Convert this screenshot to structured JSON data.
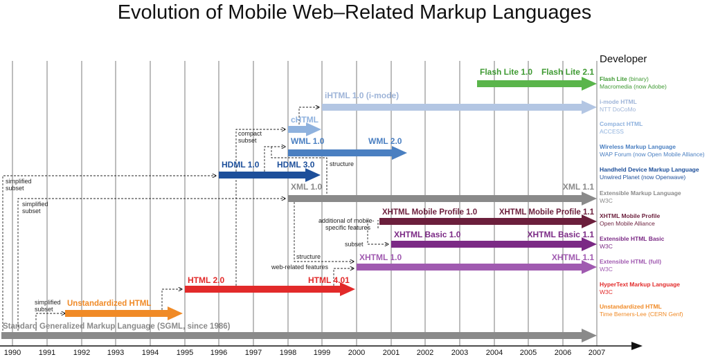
{
  "title": "Evolution of Mobile Web–Related Markup Languages",
  "developer_header": "Developer",
  "years": [
    "1990",
    "1991",
    "1992",
    "1993",
    "1994",
    "1995",
    "1996",
    "1997",
    "1998",
    "1999",
    "2000",
    "2001",
    "2002",
    "2003",
    "2004",
    "2005",
    "2006",
    "2007"
  ],
  "colors": {
    "sgml": "#8a8a8a",
    "xml": "#8a8a8a",
    "flash": "#5ab54b",
    "ihtml": "#b3c6e3",
    "chtml": "#8fb2de",
    "wml": "#4a7fc1",
    "hdml": "#1d4f9a",
    "xhtml_mp": "#6b1f3c",
    "xhtml_basic": "#7b2a85",
    "xhtml": "#a05ab0",
    "html": "#e22a2a",
    "unstd": "#f08a26",
    "flash_text": "#3f9a33",
    "ihtml_text": "#9eb4d8"
  },
  "labels": {
    "flash_lite_10": "Flash Lite 1.0",
    "flash_lite_21": "Flash Lite 2.1",
    "ihtml_10": "iHTML 1.0 (i-mode)",
    "chtml": "cHTML",
    "wml_10": "WML 1.0",
    "wml_20": "WML 2.0",
    "hdml_10": "HDML 1.0",
    "hdml_30": "HDML 3.0",
    "xml_10": "XML 1.0",
    "xml_11": "XML 1.1",
    "xhtml_mp_10": "XHTML Mobile Profile 1.0",
    "xhtml_mp_11": "XHTML Mobile Profile 1.1",
    "xhtml_basic_10": "XHTML Basic 1.0",
    "xhtml_basic_11": "XHTML Basic 1.1",
    "xhtml_10": "XHTML 1.0",
    "xhtml_11": "XHTML 1.1",
    "html_20": "HTML 2.0",
    "html_401": "HTML 4.01",
    "unstd_html": "Unstandardized HTML",
    "sgml": "Standard Generalized Markup Language (SGML, since 1986)"
  },
  "annotations": {
    "compact": "compact",
    "subset": "subset",
    "structure": "structure",
    "simplified": "simplified",
    "additional_1": "additional of mobile-",
    "additional_2": "specific features",
    "web_related": "web-related features"
  },
  "developers": [
    {
      "name": "Flash Lite",
      "name_suffix": " (binary)",
      "org": "Macromedia (now Adobe)",
      "color": "#3f9a33"
    },
    {
      "name": "i-mode HTML",
      "name_suffix": "",
      "org": "NTT DoCoMo",
      "color": "#9eb4d8"
    },
    {
      "name": "Compact HTML",
      "name_suffix": "",
      "org": "ACCESS",
      "color": "#8fb2de"
    },
    {
      "name": "Wireless Markup Language",
      "name_suffix": "",
      "org": "WAP Forum (now Open Mobile Alliance)",
      "color": "#4a7fc1"
    },
    {
      "name": "Handheld Device Markup Language",
      "name_suffix": "",
      "org": "Unwired Planet (now Openwave)",
      "color": "#1d4f9a"
    },
    {
      "name": "Extensible Markup Language",
      "name_suffix": "",
      "org": "W3C",
      "color": "#8a8a8a"
    },
    {
      "name": "XHTML Mobile Profile",
      "name_suffix": "",
      "org": "Open Mobile Alliance",
      "color": "#6b1f3c"
    },
    {
      "name": "Extensible HTML Basic",
      "name_suffix": "",
      "org": "W3C",
      "color": "#7b2a85"
    },
    {
      "name": "Extensible HTML (full)",
      "name_suffix": "",
      "org": "W3C",
      "color": "#a05ab0"
    },
    {
      "name": "HyperText Markup Language",
      "name_suffix": "",
      "org": "W3C",
      "color": "#e22a2a"
    },
    {
      "name": "Unstandardized HTML",
      "name_suffix": "",
      "org": "Time Berners-Lee (CERN Genf)",
      "color": "#f08a26"
    }
  ]
}
